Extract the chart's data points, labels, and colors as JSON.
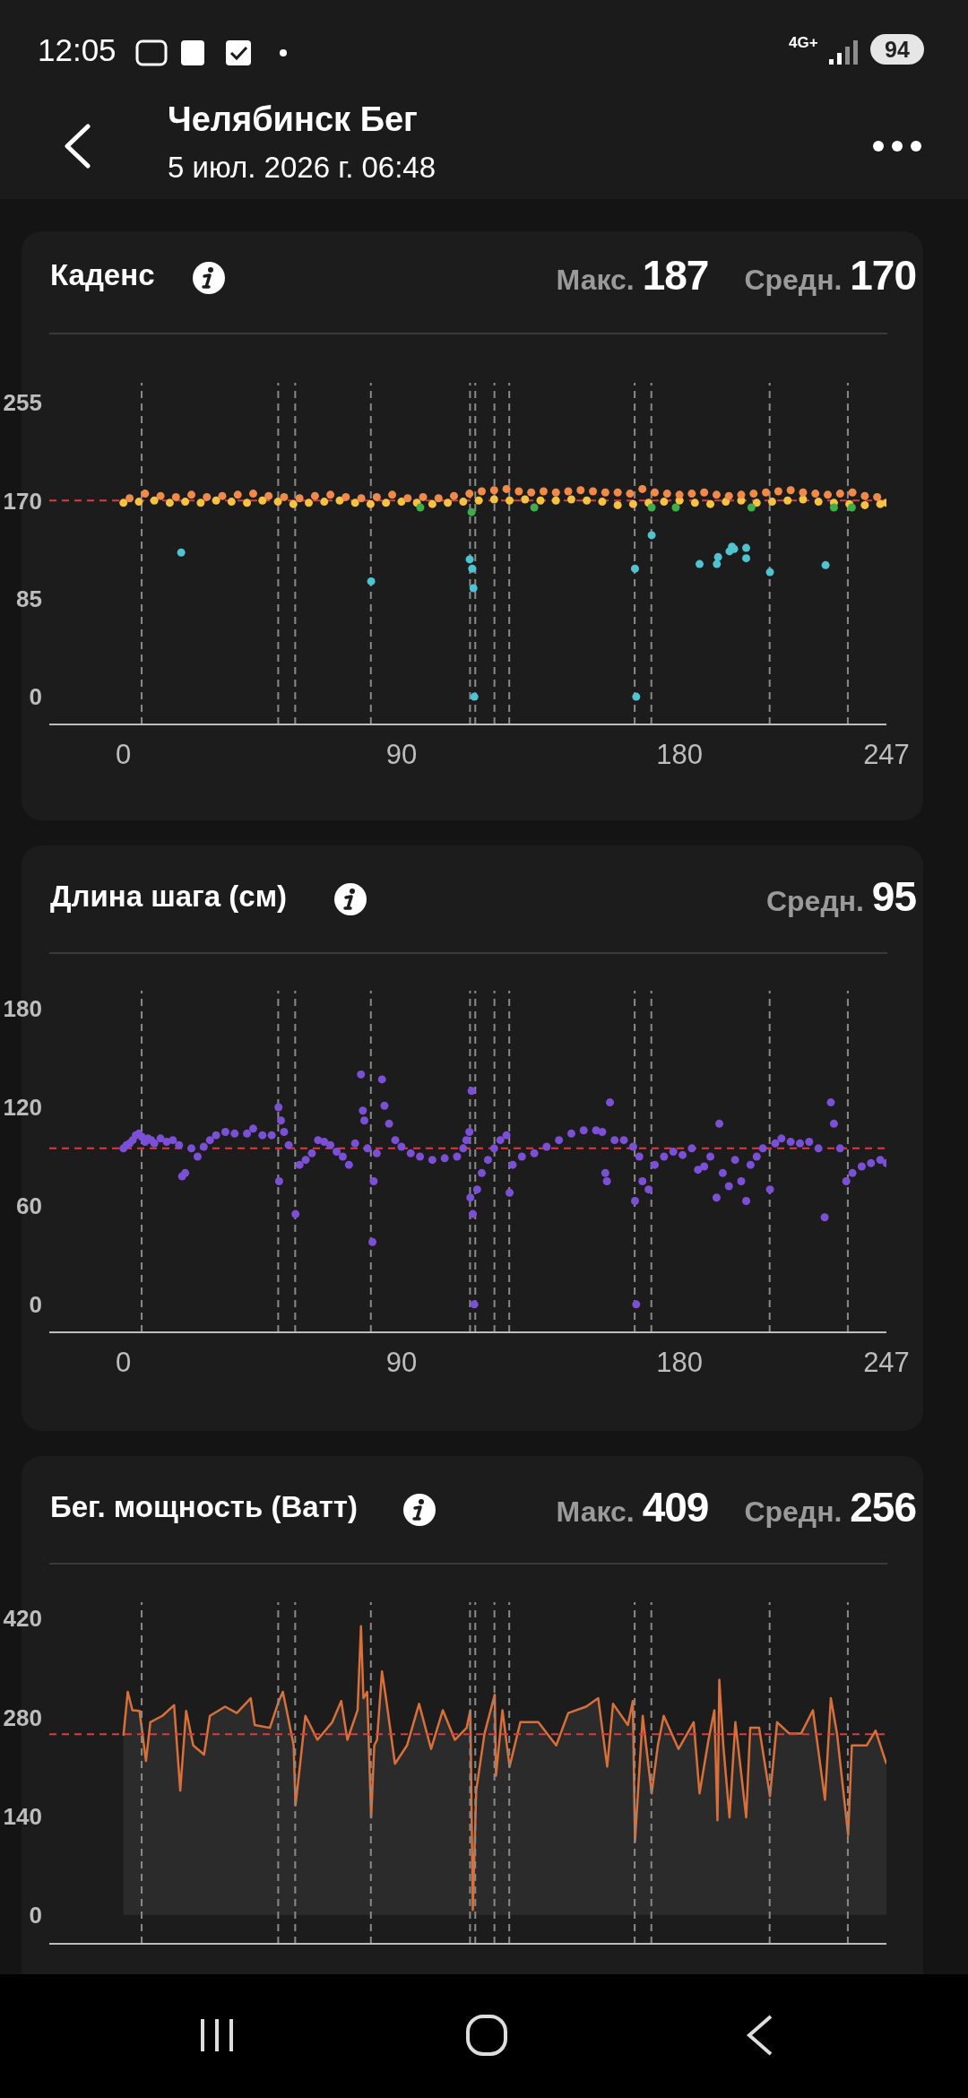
{
  "chart_data": [
    {
      "type": "scatter",
      "title": "Каденс",
      "annotations": [
        "12:05",
        "4G+",
        "94",
        "Челябинск Бег",
        "5 июл. 2026 г. 06:48",
        "Макс. 187",
        "Средн. 170"
      ],
      "xlim": [
        -24,
        247
      ],
      "xticks": [
        0,
        90,
        180,
        247
      ],
      "ylim": [
        -24,
        272
      ],
      "yticks": [
        0,
        85,
        170,
        255
      ],
      "marker": "circle",
      "series": [
        {
          "color": "#f5c242",
          "x": [
            0,
            5,
            10,
            15,
            20,
            25,
            30,
            35,
            40,
            45,
            50,
            55,
            60,
            65,
            70,
            75,
            80,
            85,
            90,
            95,
            100,
            105,
            110,
            115,
            120,
            125,
            130,
            135,
            140,
            145,
            150,
            155,
            160,
            165,
            170,
            175,
            180,
            185,
            190,
            195,
            200,
            205,
            210,
            215,
            220,
            225,
            230,
            235,
            240,
            245,
            247
          ],
          "values": [
            168,
            169,
            170,
            168,
            169,
            168,
            170,
            169,
            168,
            170,
            169,
            167,
            168,
            169,
            170,
            168,
            167,
            168,
            169,
            168,
            167,
            168,
            169,
            170,
            171,
            170,
            171,
            170,
            170,
            171,
            170,
            169,
            166,
            167,
            168,
            169,
            170,
            168,
            167,
            169,
            170,
            168,
            169,
            170,
            171,
            169,
            168,
            167,
            166,
            167,
            168
          ]
        },
        {
          "color": "#f08a4b",
          "x": [
            2,
            7,
            12,
            17,
            22,
            27,
            32,
            37,
            42,
            47,
            52,
            57,
            62,
            67,
            72,
            77,
            82,
            87,
            92,
            97,
            102,
            107,
            112,
            116,
            120,
            124,
            128,
            132,
            136,
            140,
            144,
            148,
            152,
            156,
            160,
            164,
            168,
            172,
            176,
            180,
            184,
            188,
            192,
            196,
            200,
            204,
            208,
            212,
            216,
            220,
            224,
            228,
            232,
            236,
            240,
            244
          ],
          "values": [
            172,
            176,
            174,
            173,
            175,
            173,
            174,
            175,
            176,
            174,
            173,
            172,
            174,
            175,
            173,
            172,
            173,
            175,
            172,
            173,
            172,
            174,
            176,
            178,
            179,
            180,
            178,
            177,
            178,
            177,
            178,
            179,
            178,
            177,
            177,
            176,
            180,
            177,
            176,
            175,
            176,
            177,
            175,
            174,
            175,
            176,
            177,
            178,
            179,
            177,
            176,
            175,
            176,
            177,
            174,
            173
          ]
        },
        {
          "color": "#3fae4a",
          "x": [
            96.1,
            112.7,
            133,
            171,
            178.8,
            203.3,
            230,
            235.8
          ],
          "values": [
            164,
            160,
            164,
            164,
            164,
            164,
            164,
            164
          ]
        },
        {
          "color": "#4fc3d0",
          "x": [
            18.7,
            80.2,
            112.1,
            112.9,
            113.3,
            113.6,
            165.6,
            166,
            171,
            186.5,
            192.1,
            192.5,
            196.2,
            197,
            197.7,
            201.6,
            201.6,
            209.3,
            227.3
          ],
          "values": [
            125,
            100,
            119,
            111,
            94,
            0,
            111,
            0,
            140,
            115,
            115,
            121,
            126,
            130,
            128,
            129,
            120,
            108,
            114
          ]
        }
      ],
      "ref_lines": [
        {
          "axis": "y",
          "value": 170,
          "color": "#e0393e",
          "line_style": "dashed"
        },
        {
          "axis": "x",
          "value": 5.9,
          "color": "#8a8a8a",
          "line_style": "dashed"
        },
        {
          "axis": "x",
          "value": 50.1,
          "color": "#8a8a8a",
          "line_style": "dashed"
        },
        {
          "axis": "x",
          "value": 55.6,
          "color": "#8a8a8a",
          "line_style": "dashed"
        },
        {
          "axis": "x",
          "value": 80.1,
          "color": "#8a8a8a",
          "line_style": "dashed"
        },
        {
          "axis": "x",
          "value": 112.2,
          "color": "#8a8a8a",
          "line_style": "dashed"
        },
        {
          "axis": "x",
          "value": 113.9,
          "color": "#8a8a8a",
          "line_style": "dashed"
        },
        {
          "axis": "x",
          "value": 120.1,
          "color": "#8a8a8a",
          "line_style": "dashed"
        },
        {
          "axis": "x",
          "value": 124.9,
          "color": "#8a8a8a",
          "line_style": "dashed"
        },
        {
          "axis": "x",
          "value": 165.5,
          "color": "#8a8a8a",
          "line_style": "dashed"
        },
        {
          "axis": "x",
          "value": 170.9,
          "color": "#8a8a8a",
          "line_style": "dashed"
        },
        {
          "axis": "x",
          "value": 209.2,
          "color": "#8a8a8a",
          "line_style": "dashed"
        },
        {
          "axis": "x",
          "value": 234.5,
          "color": "#8a8a8a",
          "line_style": "dashed"
        }
      ]
    },
    {
      "type": "scatter",
      "title": "Длина шага (см)",
      "annotations": [
        "Средн. 95"
      ],
      "xlim": [
        -24,
        247
      ],
      "xticks": [
        0,
        90,
        180,
        247
      ],
      "ylim": [
        -17,
        191
      ],
      "yticks": [
        0,
        60,
        120,
        180
      ],
      "marker": "circle",
      "series": [
        {
          "color": "#7b4fd6",
          "x": [
            0,
            1,
            2,
            3,
            4,
            5,
            6,
            7,
            8,
            9,
            10,
            12,
            14,
            16,
            18,
            19,
            20,
            22,
            24,
            26,
            28,
            30,
            33,
            36,
            40,
            42,
            45,
            48,
            50.2,
            50.4,
            51,
            52,
            53.5,
            55.7,
            57,
            59,
            61,
            63,
            65,
            67,
            69,
            71,
            73,
            75,
            76.9,
            77.5,
            78,
            79,
            80.6,
            81,
            82,
            83.7,
            84.5,
            86,
            88,
            90,
            93,
            96,
            100,
            104,
            108,
            110,
            111,
            112,
            112.3,
            112.7,
            113.1,
            113.6,
            114.5,
            116,
            118,
            120,
            122,
            124,
            125,
            126,
            129,
            133,
            137,
            141,
            145,
            149,
            153,
            155,
            156,
            156.5,
            157.5,
            159,
            162,
            165,
            165.6,
            166,
            167,
            168,
            170,
            172,
            175,
            178,
            181,
            184,
            186,
            188,
            190,
            192,
            192.9,
            194,
            196,
            198,
            200,
            201.6,
            203,
            205,
            207,
            209.3,
            211,
            213,
            216,
            219,
            222,
            225,
            227,
            229,
            230,
            232,
            234,
            236,
            239,
            242,
            245,
            247
          ],
          "values": [
            95,
            97,
            98,
            100,
            103,
            104,
            102,
            99,
            101,
            100,
            98,
            101,
            99,
            100,
            97,
            78,
            80,
            95,
            90,
            96,
            100,
            103,
            105,
            104,
            104,
            107,
            103,
            103,
            120,
            75,
            112,
            105,
            97,
            55,
            85,
            88,
            92,
            100,
            99,
            97,
            93,
            90,
            85,
            98,
            140,
            118,
            112,
            95,
            38,
            75,
            92,
            137,
            121,
            110,
            100,
            96,
            92,
            90,
            88,
            89,
            90,
            95,
            100,
            105,
            65,
            130,
            55,
            0,
            70,
            80,
            88,
            95,
            100,
            103,
            68,
            85,
            90,
            92,
            96,
            100,
            104,
            106,
            106,
            105,
            80,
            75,
            123,
            100,
            100,
            96,
            63,
            0,
            90,
            75,
            70,
            85,
            90,
            93,
            91,
            95,
            82,
            84,
            90,
            65,
            110,
            80,
            72,
            88,
            75,
            63,
            85,
            90,
            95,
            70,
            98,
            101,
            99,
            98,
            99,
            95,
            53,
            123,
            110,
            95,
            75,
            80,
            84,
            86,
            88,
            86
          ]
        }
      ],
      "ref_lines": [
        {
          "axis": "y",
          "value": 95,
          "color": "#e0393e",
          "line_style": "dashed"
        },
        {
          "axis": "x",
          "value": 5.9,
          "color": "#8a8a8a",
          "line_style": "dashed"
        },
        {
          "axis": "x",
          "value": 50.1,
          "color": "#8a8a8a",
          "line_style": "dashed"
        },
        {
          "axis": "x",
          "value": 55.6,
          "color": "#8a8a8a",
          "line_style": "dashed"
        },
        {
          "axis": "x",
          "value": 80.1,
          "color": "#8a8a8a",
          "line_style": "dashed"
        },
        {
          "axis": "x",
          "value": 112.2,
          "color": "#8a8a8a",
          "line_style": "dashed"
        },
        {
          "axis": "x",
          "value": 113.9,
          "color": "#8a8a8a",
          "line_style": "dashed"
        },
        {
          "axis": "x",
          "value": 120.1,
          "color": "#8a8a8a",
          "line_style": "dashed"
        },
        {
          "axis": "x",
          "value": 124.9,
          "color": "#8a8a8a",
          "line_style": "dashed"
        },
        {
          "axis": "x",
          "value": 165.5,
          "color": "#8a8a8a",
          "line_style": "dashed"
        },
        {
          "axis": "x",
          "value": 170.9,
          "color": "#8a8a8a",
          "line_style": "dashed"
        },
        {
          "axis": "x",
          "value": 209.2,
          "color": "#8a8a8a",
          "line_style": "dashed"
        },
        {
          "axis": "x",
          "value": 234.5,
          "color": "#8a8a8a",
          "line_style": "dashed"
        }
      ]
    },
    {
      "type": "area",
      "title": "Бег. мощность (Ватт)",
      "annotations": [
        "Макс. 409",
        "Средн. 256"
      ],
      "xlim": [
        -24,
        247
      ],
      "xticks": [
        0,
        90,
        180,
        247
      ],
      "ylim": [
        -41,
        443
      ],
      "yticks": [
        0,
        140,
        280,
        420
      ],
      "tick_labels": "y",
      "series": [
        {
          "color": "#d9703a",
          "x": [
            0,
            1.4,
            2.9,
            5.2,
            7.3,
            8.7,
            12.6,
            16.4,
            18.4,
            20.3,
            22.6,
            26.1,
            28.0,
            32.9,
            36.7,
            41.2,
            42.5,
            47.4,
            50.3,
            51.6,
            53.2,
            55.1,
            55.7,
            57.0,
            58.9,
            62.8,
            67.6,
            70.5,
            72.5,
            75.8,
            76.9,
            77.7,
            78.9,
            80.2,
            81.2,
            82.1,
            83.7,
            85.0,
            87.9,
            91.8,
            95.7,
            99.6,
            103.4,
            107.3,
            111.1,
            112.3,
            113.1,
            114.2,
            116.9,
            120.2,
            120.6,
            122.7,
            125.0,
            128.5,
            134.3,
            140.1,
            144.0,
            149.8,
            153.7,
            156.6,
            158.5,
            163.3,
            164.9,
            165.6,
            168.1,
            171.0,
            173.0,
            174.9,
            179.7,
            184.6,
            186.5,
            189.4,
            191.3,
            192.3,
            192.9,
            194.2,
            196.2,
            198.1,
            201.6,
            202.9,
            205.8,
            209.3,
            211.6,
            215.5,
            219.4,
            223.2,
            227.1,
            229.0,
            231.0,
            234.6,
            235.8,
            240.6,
            243.5,
            247.0
          ],
          "values": [
            254,
            316,
            290,
            289,
            218,
            273,
            282,
            297,
            176,
            289,
            240,
            227,
            282,
            295,
            286,
            307,
            269,
            265,
            303,
            316,
            282,
            240,
            155,
            206,
            282,
            248,
            273,
            303,
            248,
            290,
            409,
            307,
            316,
            138,
            240,
            248,
            345,
            307,
            214,
            240,
            299,
            235,
            290,
            248,
            265,
            290,
            7,
            176,
            257,
            312,
            197,
            290,
            210,
            273,
            273,
            240,
            286,
            295,
            307,
            210,
            299,
            269,
            303,
            104,
            282,
            172,
            240,
            282,
            235,
            273,
            172,
            248,
            290,
            134,
            333,
            240,
            138,
            273,
            138,
            265,
            265,
            168,
            273,
            257,
            257,
            290,
            163,
            307,
            257,
            113,
            240,
            240,
            261,
            214
          ]
        }
      ],
      "ref_lines": [
        {
          "axis": "y",
          "value": 256,
          "color": "#e0393e",
          "line_style": "dashed"
        },
        {
          "axis": "x",
          "value": 5.9,
          "color": "#8a8a8a",
          "line_style": "dashed"
        },
        {
          "axis": "x",
          "value": 50.1,
          "color": "#8a8a8a",
          "line_style": "dashed"
        },
        {
          "axis": "x",
          "value": 55.6,
          "color": "#8a8a8a",
          "line_style": "dashed"
        },
        {
          "axis": "x",
          "value": 80.1,
          "color": "#8a8a8a",
          "line_style": "dashed"
        },
        {
          "axis": "x",
          "value": 112.2,
          "color": "#8a8a8a",
          "line_style": "dashed"
        },
        {
          "axis": "x",
          "value": 113.9,
          "color": "#8a8a8a",
          "line_style": "dashed"
        },
        {
          "axis": "x",
          "value": 120.1,
          "color": "#8a8a8a",
          "line_style": "dashed"
        },
        {
          "axis": "x",
          "value": 124.9,
          "color": "#8a8a8a",
          "line_style": "dashed"
        },
        {
          "axis": "x",
          "value": 165.5,
          "color": "#8a8a8a",
          "line_style": "dashed"
        },
        {
          "axis": "x",
          "value": 170.9,
          "color": "#8a8a8a",
          "line_style": "dashed"
        },
        {
          "axis": "x",
          "value": 209.2,
          "color": "#8a8a8a",
          "line_style": "dashed"
        },
        {
          "axis": "x",
          "value": 234.5,
          "color": "#8a8a8a",
          "line_style": "dashed"
        }
      ]
    }
  ]
}
